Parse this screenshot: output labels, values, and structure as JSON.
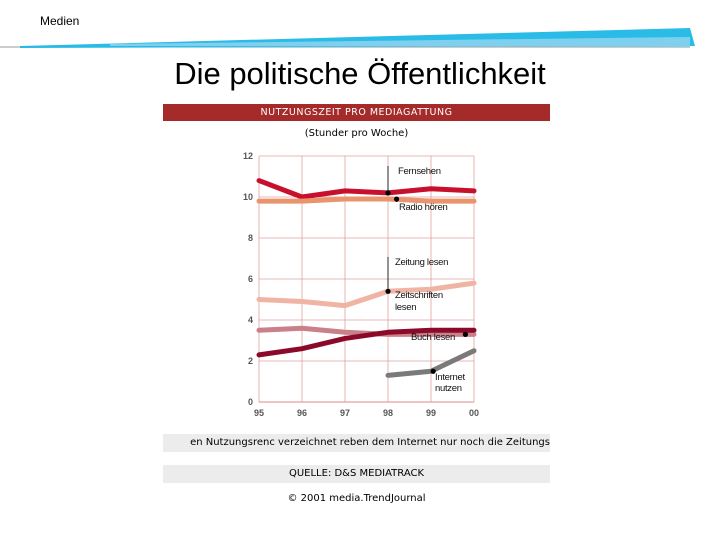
{
  "header": {
    "label": "Medien"
  },
  "slide": {
    "title": "Die politische Öffentlichkeit"
  },
  "figure": {
    "header": "NUTZUNGSZEIT PRO MEDIAGATTUNG",
    "subtitle": "(Stunder pro Woche)",
    "caption": "en Nutzungsrenc verzeichnet reben dem Internet nur noch die Zeitungs",
    "source": "QUELLE: D&S MEDIATRACK",
    "copyright": "© 2001 media.TrendJournal"
  },
  "colors": {
    "header_bg": "#a52a2a",
    "decor_blue": "#1fb8e6"
  },
  "chart_data": {
    "type": "line",
    "categories": [
      "95",
      "96",
      "97",
      "98",
      "99",
      "00"
    ],
    "ylim": [
      0,
      12
    ],
    "yticks": [
      0,
      2,
      4,
      6,
      8,
      10,
      12
    ],
    "grid": true,
    "series": [
      {
        "name": "Fernsehen",
        "color": "#c8102e",
        "points": [
          [
            0,
            10.8
          ],
          [
            1,
            10.0
          ],
          [
            2,
            10.3
          ],
          [
            3,
            10.2
          ],
          [
            4,
            10.4
          ],
          [
            5,
            10.3
          ]
        ]
      },
      {
        "name": "Radio hören",
        "color": "#e8956e",
        "points": [
          [
            0,
            9.8
          ],
          [
            1,
            9.8
          ],
          [
            2,
            9.9
          ],
          [
            3,
            9.9
          ],
          [
            4,
            9.8
          ],
          [
            5,
            9.8
          ]
        ]
      },
      {
        "name": "Zeitung lesen",
        "color": "#f0b4a4",
        "points": [
          [
            0,
            5.0
          ],
          [
            1,
            4.9
          ],
          [
            2,
            4.7
          ],
          [
            3,
            5.4
          ],
          [
            4,
            5.5
          ],
          [
            5,
            5.8
          ]
        ]
      },
      {
        "name": "Zeitschriften lesen",
        "color": "#c98088",
        "points": [
          [
            0,
            3.5
          ],
          [
            1,
            3.6
          ],
          [
            2,
            3.4
          ],
          [
            3,
            3.3
          ],
          [
            4,
            3.3
          ],
          [
            5,
            3.3
          ]
        ]
      },
      {
        "name": "Buch lesen",
        "color": "#8b0a2a",
        "points": [
          [
            0,
            2.3
          ],
          [
            1,
            2.6
          ],
          [
            2,
            3.1
          ],
          [
            3,
            3.4
          ],
          [
            4,
            3.5
          ],
          [
            5,
            3.5
          ]
        ]
      },
      {
        "name": "Internet nutzen",
        "color": "#7a7a7a",
        "points": [
          [
            3,
            1.3
          ],
          [
            4,
            1.5
          ],
          [
            5,
            2.5
          ]
        ]
      }
    ],
    "labels": [
      {
        "text": "Fernsehen",
        "series": "Fernsehen"
      },
      {
        "text": "Radio hören",
        "series": "Radio hören"
      },
      {
        "text": "Zeitung lesen",
        "series": "Zeitung lesen"
      },
      {
        "text": "Zeitschriften",
        "series": "Zeitschriften lesen"
      },
      {
        "text": "lesen",
        "series": "Zeitschriften lesen"
      },
      {
        "text": "Buch lesen",
        "series": "Buch lesen"
      },
      {
        "text": "Internet",
        "series": "Internet nutzen"
      },
      {
        "text": "nutzen",
        "series": "Internet nutzen"
      }
    ]
  }
}
